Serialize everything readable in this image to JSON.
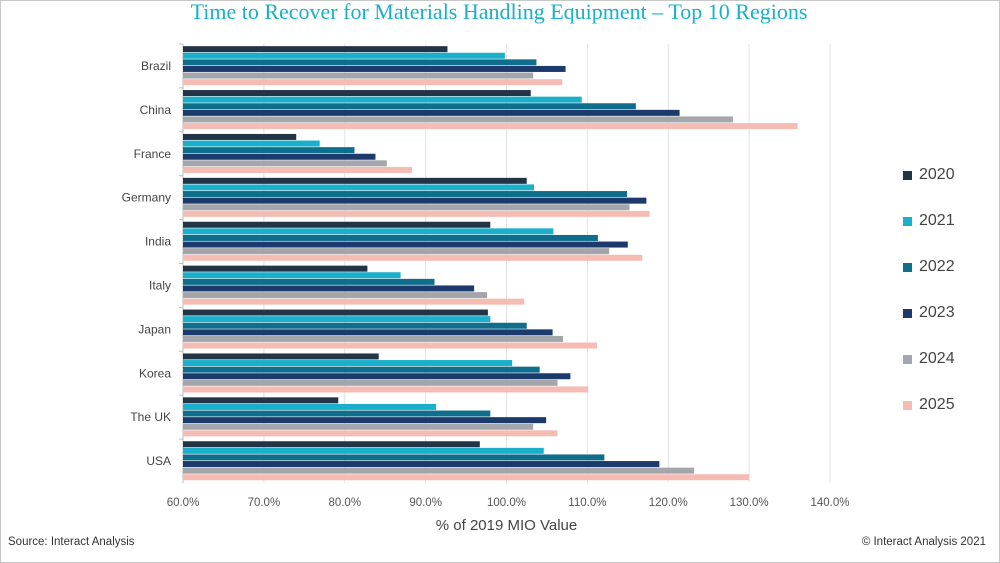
{
  "header": {
    "title": "Time to Recover for Materials Handling Equipment – Top 10 Regions"
  },
  "footer": {
    "source": "Source: Interact Analysis",
    "copyright": "© Interact Analysis 2021"
  },
  "chart_data": {
    "type": "bar",
    "orientation": "horizontal",
    "title": "Time to Recover for Materials Handling Equipment – Top 10 Regions",
    "xlabel": "% of 2019 MIO Value",
    "ylabel": "",
    "xlim": [
      60,
      140
    ],
    "xticks": [
      60,
      70,
      80,
      90,
      100,
      110,
      120,
      130,
      140
    ],
    "xtick_labels": [
      "60.0%",
      "70.0%",
      "80.0%",
      "90.0%",
      "100.0%",
      "110.0%",
      "120.0%",
      "130.0%",
      "140.0%"
    ],
    "grid": "vertical",
    "legend_position": "right",
    "categories": [
      "Brazil",
      "China",
      "France",
      "Germany",
      "India",
      "Italy",
      "Japan",
      "Korea",
      "The UK",
      "USA"
    ],
    "series": [
      {
        "name": "2020",
        "color": "#243447",
        "values": [
          92.7,
          103.0,
          74.0,
          102.5,
          98.0,
          82.8,
          97.7,
          84.2,
          79.2,
          96.7
        ]
      },
      {
        "name": "2021",
        "color": "#1aafca",
        "values": [
          99.8,
          109.3,
          76.9,
          103.4,
          105.8,
          86.9,
          98.0,
          100.7,
          91.3,
          104.6
        ]
      },
      {
        "name": "2022",
        "color": "#0f6e8c",
        "values": [
          103.7,
          116.0,
          81.2,
          114.9,
          111.3,
          91.1,
          102.5,
          104.1,
          98.0,
          112.1
        ]
      },
      {
        "name": "2023",
        "color": "#1c3a6b",
        "values": [
          107.3,
          121.4,
          83.8,
          117.3,
          115.0,
          96.0,
          105.7,
          107.9,
          104.9,
          118.9
        ]
      },
      {
        "name": "2024",
        "color": "#a3a7ab",
        "values": [
          103.3,
          128.0,
          85.2,
          115.2,
          112.7,
          97.6,
          107.0,
          106.3,
          103.3,
          123.2
        ]
      },
      {
        "name": "2025",
        "color": "#f5bcb4",
        "values": [
          106.9,
          136.0,
          88.3,
          117.7,
          116.8,
          102.2,
          111.2,
          110.1,
          106.3,
          130.0
        ]
      }
    ]
  }
}
